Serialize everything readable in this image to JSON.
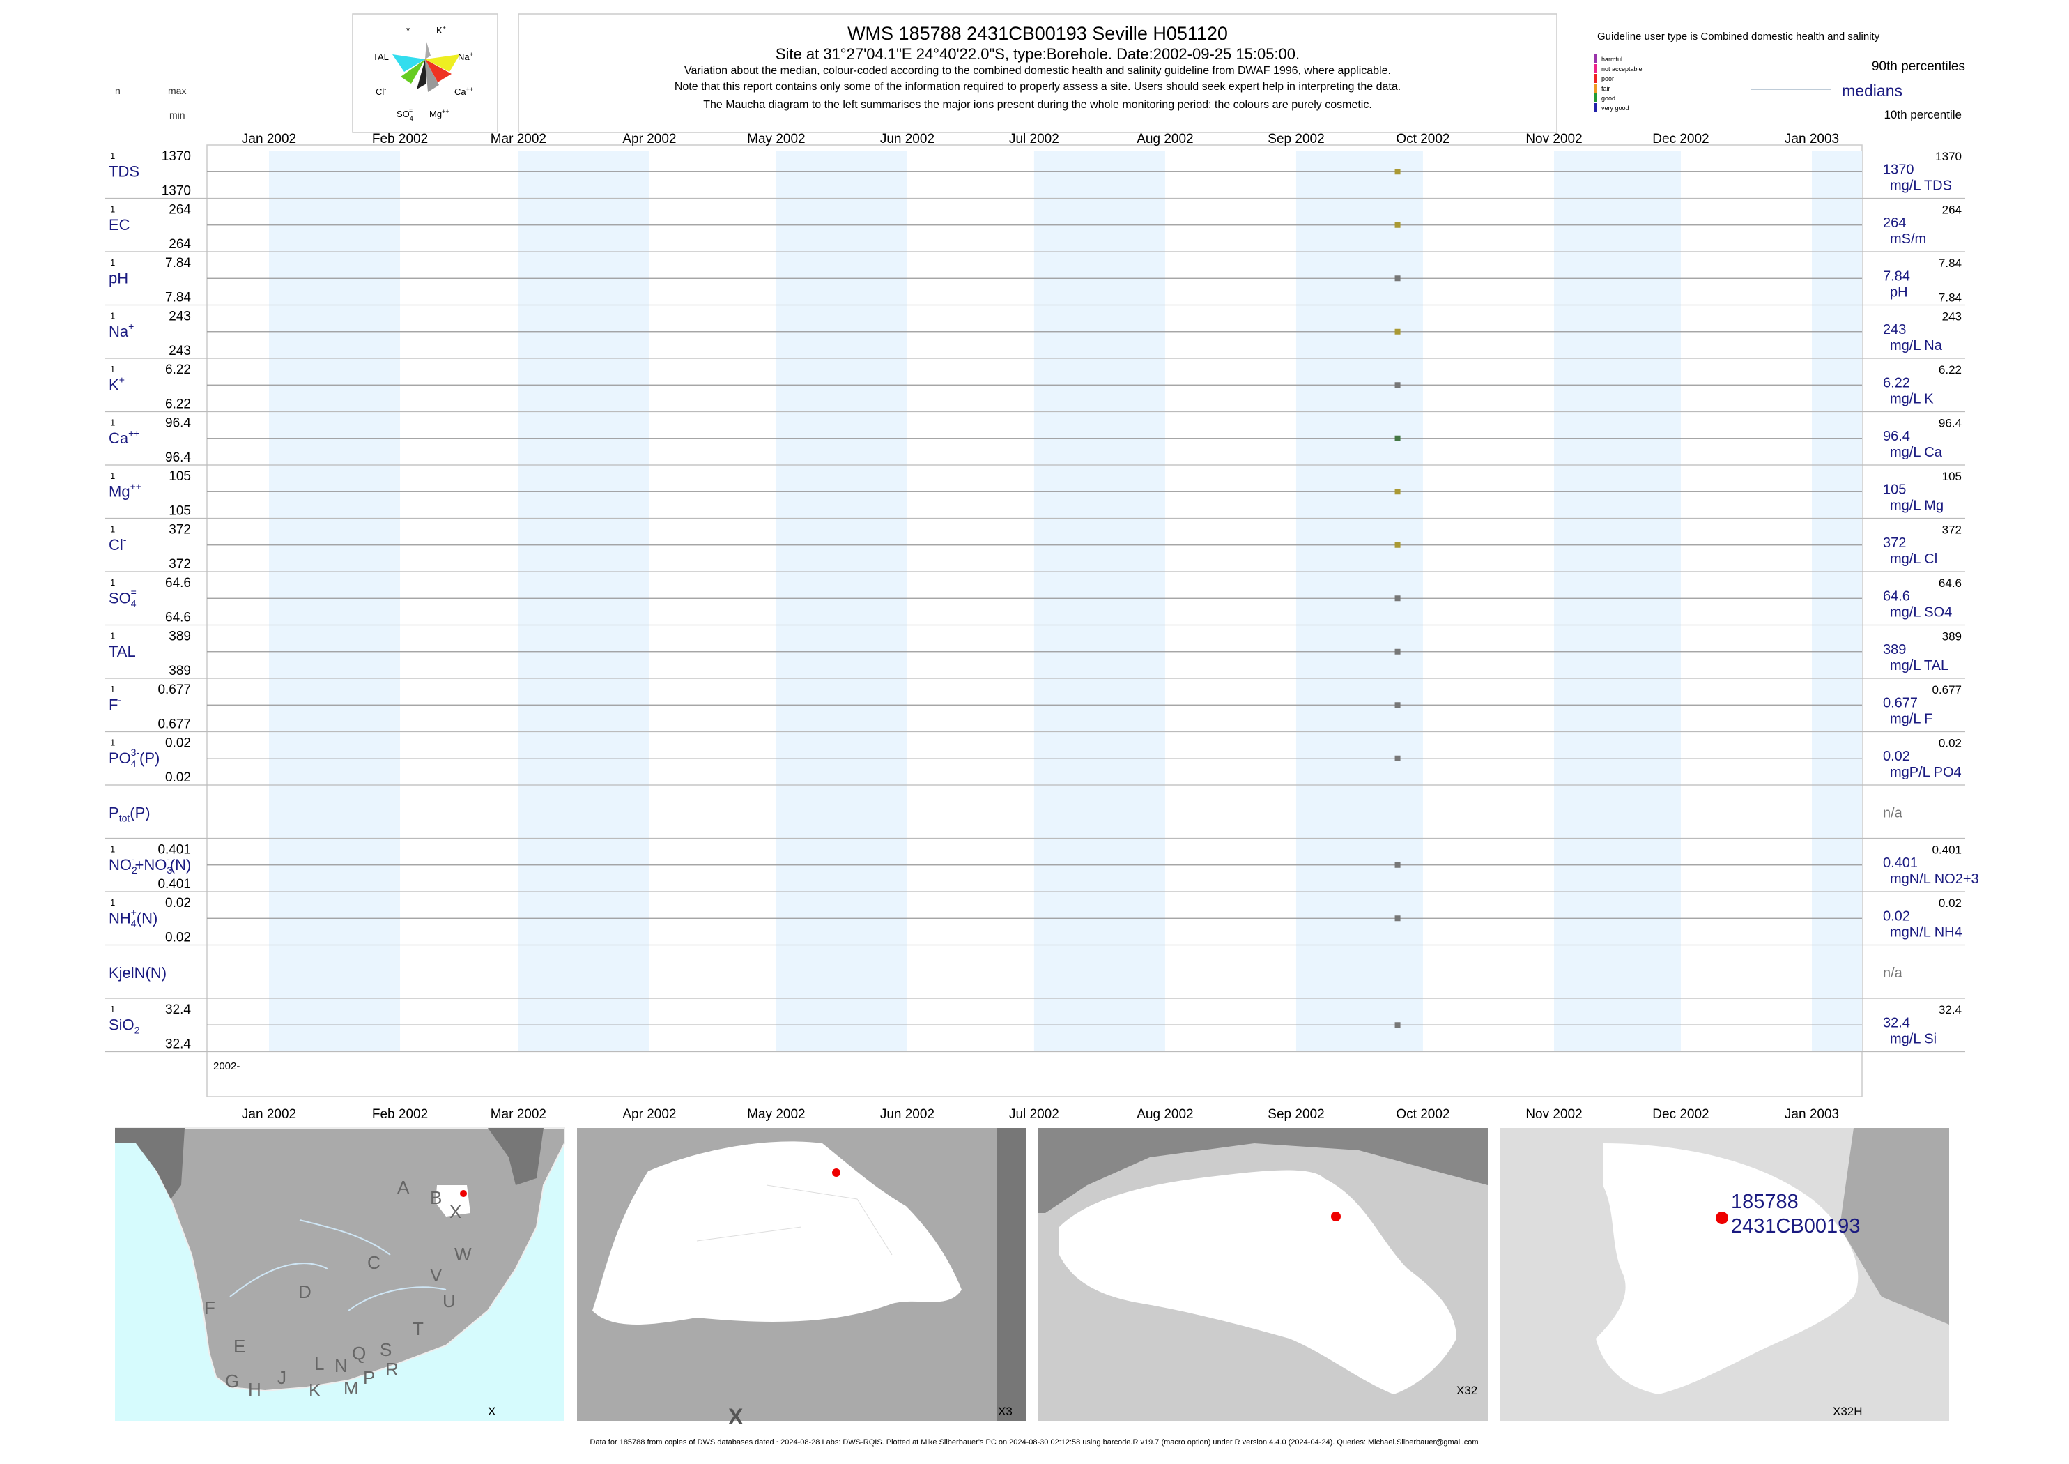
{
  "header": {
    "title": "WMS 185788 2431CB00193 Seville H051120",
    "subtitle": "Site at 31°27'04.1\"E 24°40'22.0\"S, type:Borehole. Date:2002-09-25 15:05:00.",
    "note1": "Variation about the median,  colour-coded according to the combined domestic health and salinity guideline from DWAF 1996, where applicable.",
    "note2": "Note that this report contains only some of the information required to properly assess a site. Users should seek expert help in interpreting the data.",
    "note3": "The Maucha diagram to the left summarises the major ions present during the whole monitoring period: the colours are purely cosmetic."
  },
  "left_header": {
    "n": "n",
    "max": "max",
    "min": "min"
  },
  "maucha": {
    "labels": {
      "star": "*",
      "k": "K",
      "k_sup": "+",
      "tal": "TAL",
      "na": "Na",
      "na_sup": "+",
      "cl": "Cl",
      "cl_sup": "-",
      "ca": "Ca",
      "ca_sup": "++",
      "so4": "SO",
      "so4_sub": "4",
      "so4_sup": "=",
      "mg": "Mg",
      "mg_sup": "++"
    },
    "colors": {
      "tal": "#33ddee",
      "na": "#eeee22",
      "cl": "#66cc22",
      "ca": "#ee3322",
      "so4": "#222222",
      "mg": "#999999",
      "k": "#aaaaaa"
    }
  },
  "legend": {
    "guideline": "Guideline user type is Combined domestic health and salinity",
    "classes": [
      {
        "label": "harmful",
        "color": "#9933aa"
      },
      {
        "label": "not acceptable",
        "color": "#ee2288"
      },
      {
        "label": "poor",
        "color": "#ee2222"
      },
      {
        "label": "fair",
        "color": "#ee9922"
      },
      {
        "label": "good",
        "color": "#229933"
      },
      {
        "label": "very good",
        "color": "#2222aa"
      }
    ],
    "p90": "90th percentiles",
    "medians": "medians",
    "p10": "10th percentile"
  },
  "chart_data": {
    "type": "scatter",
    "x_axis": {
      "ticks": [
        "Jan 2002",
        "Feb 2002",
        "Mar 2002",
        "Apr 2002",
        "May 2002",
        "Jun 2002",
        "Jul 2002",
        "Aug 2002",
        "Sep 2002",
        "Oct 2002",
        "Nov 2002",
        "Dec 2002",
        "Jan 2003"
      ],
      "range": [
        "2002-01-01",
        "2003-01-01"
      ],
      "bottom_label": "2002-"
    },
    "sample_date": "2002-09-25",
    "rows": [
      {
        "name": "TDS",
        "n": "1",
        "max": "1370",
        "min": "1370",
        "median": "1370",
        "p90": "1370",
        "unit": "mg/L TDS",
        "value": 1370,
        "color": "#aa9933"
      },
      {
        "name": "EC",
        "n": "1",
        "max": "264",
        "min": "264",
        "median": "264",
        "p90": "264",
        "unit": "mS/m",
        "value": 264,
        "color": "#aa9933"
      },
      {
        "name": "pH",
        "n": "1",
        "max": "7.84",
        "min": "7.84",
        "median": "7.84",
        "p90": "7.84",
        "p10": "7.84",
        "unit": "pH",
        "value": 7.84,
        "color": "#777777"
      },
      {
        "name": "Na",
        "sup": "+",
        "n": "1",
        "max": "243",
        "min": "243",
        "median": "243",
        "p90": "243",
        "unit": "mg/L Na",
        "value": 243,
        "color": "#aa9933"
      },
      {
        "name": "K",
        "sup": "+",
        "n": "1",
        "max": "6.22",
        "min": "6.22",
        "median": "6.22",
        "p90": "6.22",
        "unit": "mg/L K",
        "value": 6.22,
        "color": "#777777"
      },
      {
        "name": "Ca",
        "sup": "++",
        "n": "1",
        "max": "96.4",
        "min": "96.4",
        "median": "96.4",
        "p90": "96.4",
        "unit": "mg/L Ca",
        "value": 96.4,
        "color": "#447744"
      },
      {
        "name": "Mg",
        "sup": "++",
        "n": "1",
        "max": "105",
        "min": "105",
        "median": "105",
        "p90": "105",
        "unit": "mg/L Mg",
        "value": 105,
        "color": "#aa9933"
      },
      {
        "name": "Cl",
        "sup": "-",
        "n": "1",
        "max": "372",
        "min": "372",
        "median": "372",
        "p90": "372",
        "unit": "mg/L Cl",
        "value": 372,
        "color": "#aa9933"
      },
      {
        "name": "SO",
        "sub": "4",
        "sup": "=",
        "n": "1",
        "max": "64.6",
        "min": "64.6",
        "median": "64.6",
        "p90": "64.6",
        "unit": "mg/L SO4",
        "value": 64.6,
        "color": "#777777"
      },
      {
        "name": "TAL",
        "n": "1",
        "max": "389",
        "min": "389",
        "median": "389",
        "p90": "389",
        "unit": "mg/L TAL",
        "value": 389,
        "color": "#777777"
      },
      {
        "name": "F",
        "sup": "-",
        "n": "1",
        "max": "0.677",
        "min": "0.677",
        "median": "0.677",
        "p90": "0.677",
        "unit": "mg/L F",
        "value": 0.677,
        "color": "#777777"
      },
      {
        "name": "PO",
        "sub": "4",
        "sup": "3-",
        "suffix": "(P)",
        "n": "1",
        "max": "0.02",
        "min": "0.02",
        "median": "0.02",
        "p90": "0.02",
        "unit": "mgP/L PO4",
        "value": 0.02,
        "color": "#777777"
      },
      {
        "name": "P",
        "sub": "tot",
        "suffix": "(P)",
        "n": "",
        "max": "",
        "min": "",
        "median": "n/a",
        "p90": "",
        "unit": "",
        "value": null,
        "color": "#777777"
      },
      {
        "name": "NO",
        "sub": "2",
        "sup": "-",
        "suffix": "+NO",
        "sub2": "3",
        "sup2": "-",
        "suffix2": "(N)",
        "n": "1",
        "max": "0.401",
        "min": "0.401",
        "median": "0.401",
        "p90": "0.401",
        "unit": "mgN/L NO2+3",
        "value": 0.401,
        "color": "#777777"
      },
      {
        "name": "NH",
        "sub": "4",
        "sup": "+",
        "suffix": "(N)",
        "n": "1",
        "max": "0.02",
        "min": "0.02",
        "median": "0.02",
        "p90": "0.02",
        "unit": "mgN/L NH4",
        "value": 0.02,
        "color": "#777777"
      },
      {
        "name": "KjelN(N)",
        "n": "",
        "max": "",
        "min": "",
        "median": "n/a",
        "p90": "",
        "unit": "",
        "value": null,
        "color": "#777777"
      },
      {
        "name": "SiO",
        "sub": "2",
        "n": "1",
        "max": "32.4",
        "min": "32.4",
        "median": "32.4",
        "p90": "32.4",
        "unit": "mg/L Si",
        "value": 32.4,
        "color": "#777777"
      }
    ]
  },
  "maps": [
    {
      "label": "X",
      "letters": [
        "A",
        "B",
        "X",
        "C",
        "D",
        "V",
        "W",
        "U",
        "F",
        "E",
        "T",
        "G",
        "H",
        "J",
        "K",
        "L",
        "N",
        "M",
        "Q",
        "P",
        "S",
        "R"
      ]
    },
    {
      "label": "X3",
      "big": "X"
    },
    {
      "label": "X32"
    },
    {
      "label": "X32H",
      "site_id": "185788",
      "site_code": "2431CB00193"
    }
  ],
  "footer": "Data for 185788 from copies of DWS databases dated ~2024-08-28 Labs: DWS-RQIS. Plotted at Mike Silberbauer's PC on 2024-08-30 02:12:58 using barcode.R v19.7 (macro option) under R version 4.4.0 (2024-04-24). Queries: Michael.Silberbauer@gmail.com"
}
